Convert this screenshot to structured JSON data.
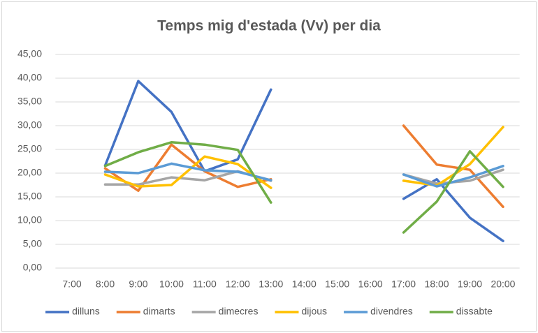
{
  "chart_data": {
    "type": "line",
    "title": "Temps mig d'estada (Vv)  per dia",
    "categories": [
      "7:00",
      "8:00",
      "9:00",
      "10:00",
      "11:00",
      "12:00",
      "13:00",
      "14:00",
      "15:00",
      "16:00",
      "17:00",
      "18:00",
      "19:00",
      "20:00"
    ],
    "series": [
      {
        "name": "dilluns",
        "color": "#4472c4",
        "values": [
          null,
          21.6,
          39.4,
          32.9,
          20.4,
          22.9,
          37.6,
          null,
          null,
          null,
          14.6,
          18.7,
          10.6,
          5.7
        ]
      },
      {
        "name": "dimarts",
        "color": "#ed7d31",
        "values": [
          null,
          21.0,
          16.3,
          26.0,
          20.4,
          17.1,
          18.7,
          null,
          null,
          null,
          30.0,
          21.8,
          20.7,
          12.9
        ]
      },
      {
        "name": "dimecres",
        "color": "#a5a5a5",
        "values": [
          null,
          17.6,
          17.6,
          19.1,
          18.5,
          20.4,
          18.4,
          null,
          null,
          null,
          19.7,
          17.8,
          18.4,
          20.7
        ]
      },
      {
        "name": "dijous",
        "color": "#ffc000",
        "values": [
          null,
          19.7,
          17.2,
          17.5,
          23.5,
          21.9,
          16.9,
          null,
          null,
          null,
          18.4,
          17.4,
          21.9,
          29.7
        ]
      },
      {
        "name": "divendres",
        "color": "#5b9bd5",
        "values": [
          null,
          20.3,
          20.0,
          22.0,
          20.6,
          20.3,
          18.5,
          null,
          null,
          null,
          19.7,
          17.2,
          19.1,
          21.5
        ]
      },
      {
        "name": "dissabte",
        "color": "#70ad47",
        "values": [
          null,
          21.5,
          24.4,
          26.5,
          26.0,
          24.9,
          13.8,
          null,
          null,
          null,
          7.5,
          14.0,
          24.6,
          17.1
        ]
      }
    ],
    "ylim": [
      0,
      45
    ],
    "yticks": [
      {
        "value": 0,
        "label": "0,00"
      },
      {
        "value": 5,
        "label": "5,00"
      },
      {
        "value": 10,
        "label": "10,00"
      },
      {
        "value": 15,
        "label": "15,00"
      },
      {
        "value": 20,
        "label": "20,00"
      },
      {
        "value": 25,
        "label": "25,00"
      },
      {
        "value": 30,
        "label": "30,00"
      },
      {
        "value": 35,
        "label": "35,00"
      },
      {
        "value": 40,
        "label": "40,00"
      },
      {
        "value": 45,
        "label": "45,00"
      }
    ],
    "grid": true,
    "legend": "bottom"
  }
}
